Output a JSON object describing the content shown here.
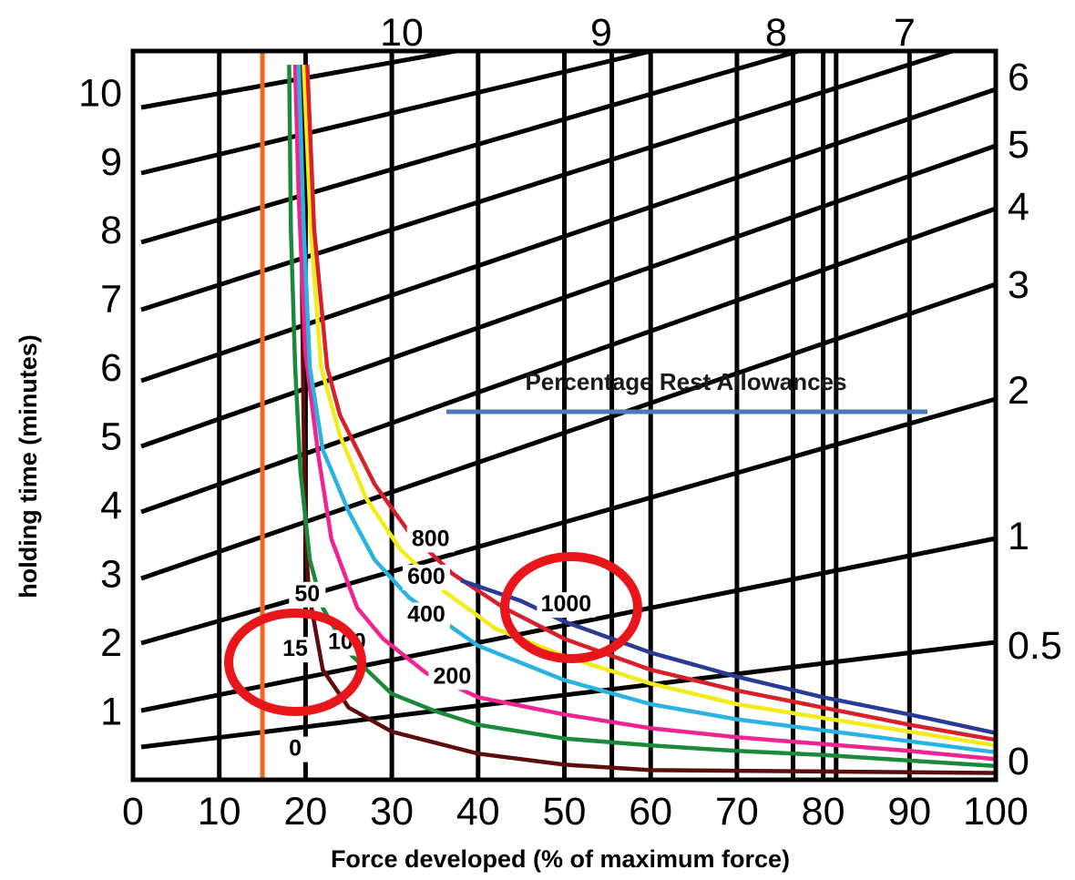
{
  "chart_data": {
    "type": "line",
    "title": "",
    "xlabel": "Force developed (% of maximum force)",
    "ylabel": "holding time (minutes)",
    "xlim": [
      0,
      100
    ],
    "ylim": [
      0,
      10.6
    ],
    "x_ticks": [
      "0",
      "10",
      "20",
      "30",
      "40",
      "50",
      "60",
      "70",
      "80",
      "90",
      "100"
    ],
    "y_ticks": [
      "1",
      "2",
      "3",
      "4",
      "5",
      "6",
      "7",
      "8",
      "9",
      "10"
    ],
    "annotation": "Percentage Rest Allowances",
    "series": [
      {
        "name": "0",
        "color": "#5c0d0d",
        "label_pos": [
          18.8,
          0.35
        ],
        "points": [
          [
            19.5,
            10.4
          ],
          [
            19.6,
            7
          ],
          [
            19.8,
            5
          ],
          [
            20,
            3.5
          ],
          [
            20.4,
            2.7
          ],
          [
            22,
            1.6
          ],
          [
            25,
            1.05
          ],
          [
            30,
            0.7
          ],
          [
            40,
            0.38
          ],
          [
            50,
            0.22
          ],
          [
            60,
            0.14
          ],
          [
            80,
            0.12
          ],
          [
            100,
            0.1
          ]
        ]
      },
      {
        "name": "15",
        "color": "#1a8a3a",
        "label_pos": [
          18.8,
          1.8
        ],
        "points": [
          [
            18.1,
            10.4
          ],
          [
            18.3,
            8
          ],
          [
            18.8,
            6
          ],
          [
            19.4,
            4.5
          ],
          [
            20.5,
            3.2
          ],
          [
            22,
            2.5
          ],
          [
            25,
            1.85
          ],
          [
            30,
            1.25
          ],
          [
            35,
            1.0
          ],
          [
            40,
            0.8
          ],
          [
            50,
            0.6
          ],
          [
            60,
            0.5
          ],
          [
            70,
            0.42
          ],
          [
            80,
            0.36
          ],
          [
            90,
            0.28
          ],
          [
            100,
            0.2
          ]
        ]
      },
      {
        "name": "50",
        "color": "#ee2490",
        "label_pos": [
          20.2,
          2.6
        ],
        "points": [
          [
            18.8,
            10.4
          ],
          [
            19.2,
            8.5
          ],
          [
            20,
            6.2
          ],
          [
            21.5,
            4.7
          ],
          [
            23,
            3.5
          ],
          [
            26,
            2.5
          ],
          [
            29,
            2.05
          ],
          [
            34,
            1.55
          ],
          [
            40,
            1.2
          ],
          [
            50,
            0.95
          ],
          [
            60,
            0.75
          ],
          [
            70,
            0.62
          ],
          [
            80,
            0.52
          ],
          [
            90,
            0.42
          ],
          [
            100,
            0.3
          ]
        ]
      },
      {
        "name": "100",
        "color": "#2ab2e0",
        "label_pos": [
          24.8,
          1.9
        ],
        "points": [
          [
            19.2,
            10.4
          ],
          [
            19.8,
            8
          ],
          [
            20.5,
            6
          ],
          [
            22,
            4.8
          ],
          [
            25,
            3.9
          ],
          [
            28,
            3.2
          ],
          [
            32,
            2.65
          ],
          [
            40,
            1.95
          ],
          [
            50,
            1.45
          ],
          [
            60,
            1.1
          ],
          [
            70,
            0.88
          ],
          [
            80,
            0.72
          ],
          [
            90,
            0.56
          ],
          [
            100,
            0.4
          ]
        ]
      },
      {
        "name": "200",
        "color": "#f2ec1a",
        "label_pos": [
          37.0,
          1.4
        ],
        "points": [
          [
            19.8,
            10.4
          ],
          [
            20.6,
            8
          ],
          [
            21.8,
            6
          ],
          [
            24,
            5
          ],
          [
            27,
            4.1
          ],
          [
            31,
            3.35
          ],
          [
            36,
            2.75
          ],
          [
            42,
            2.2
          ],
          [
            50,
            1.8
          ],
          [
            60,
            1.4
          ],
          [
            70,
            1.1
          ],
          [
            80,
            0.9
          ],
          [
            90,
            0.7
          ],
          [
            100,
            0.5
          ]
        ]
      },
      {
        "name": "400",
        "color": "#d8202a",
        "label_pos": [
          34.0,
          2.3
        ],
        "points": [
          [
            20.2,
            10.4
          ],
          [
            21,
            8
          ],
          [
            22.5,
            6
          ],
          [
            24,
            5.3
          ],
          [
            28,
            4.3
          ],
          [
            32,
            3.6
          ],
          [
            37,
            3.0
          ],
          [
            43,
            2.5
          ],
          [
            50,
            2.05
          ],
          [
            60,
            1.6
          ],
          [
            70,
            1.3
          ],
          [
            80,
            1.05
          ],
          [
            90,
            0.8
          ],
          [
            100,
            0.58
          ]
        ]
      },
      {
        "name": "600",
        "color": "#2b3a94",
        "label_pos": [
          34.0,
          2.85
        ],
        "points": [
          [
            38,
            2.9
          ],
          [
            45,
            2.6
          ],
          [
            50,
            2.3
          ],
          [
            60,
            1.85
          ],
          [
            70,
            1.5
          ],
          [
            80,
            1.2
          ],
          [
            90,
            0.95
          ],
          [
            100,
            0.68
          ]
        ]
      },
      {
        "name": "800",
        "color": "#000000",
        "label_pos": [
          34.5,
          3.4
        ],
        "points": []
      },
      {
        "name": "1000",
        "color": "#000000",
        "label_pos": [
          50.2,
          2.45
        ],
        "points": []
      }
    ],
    "rest_allowance_scale": {
      "right_labels": [
        "6",
        "5",
        "4",
        "3",
        "2",
        "1",
        "0.5",
        "0"
      ],
      "top_labels": [
        "10",
        "9",
        "8",
        "7"
      ]
    },
    "highlights": {
      "vertical_line_x": 15,
      "vertical_line_color": "#f26522",
      "circle_color": "#e8161a"
    },
    "grid": true
  }
}
